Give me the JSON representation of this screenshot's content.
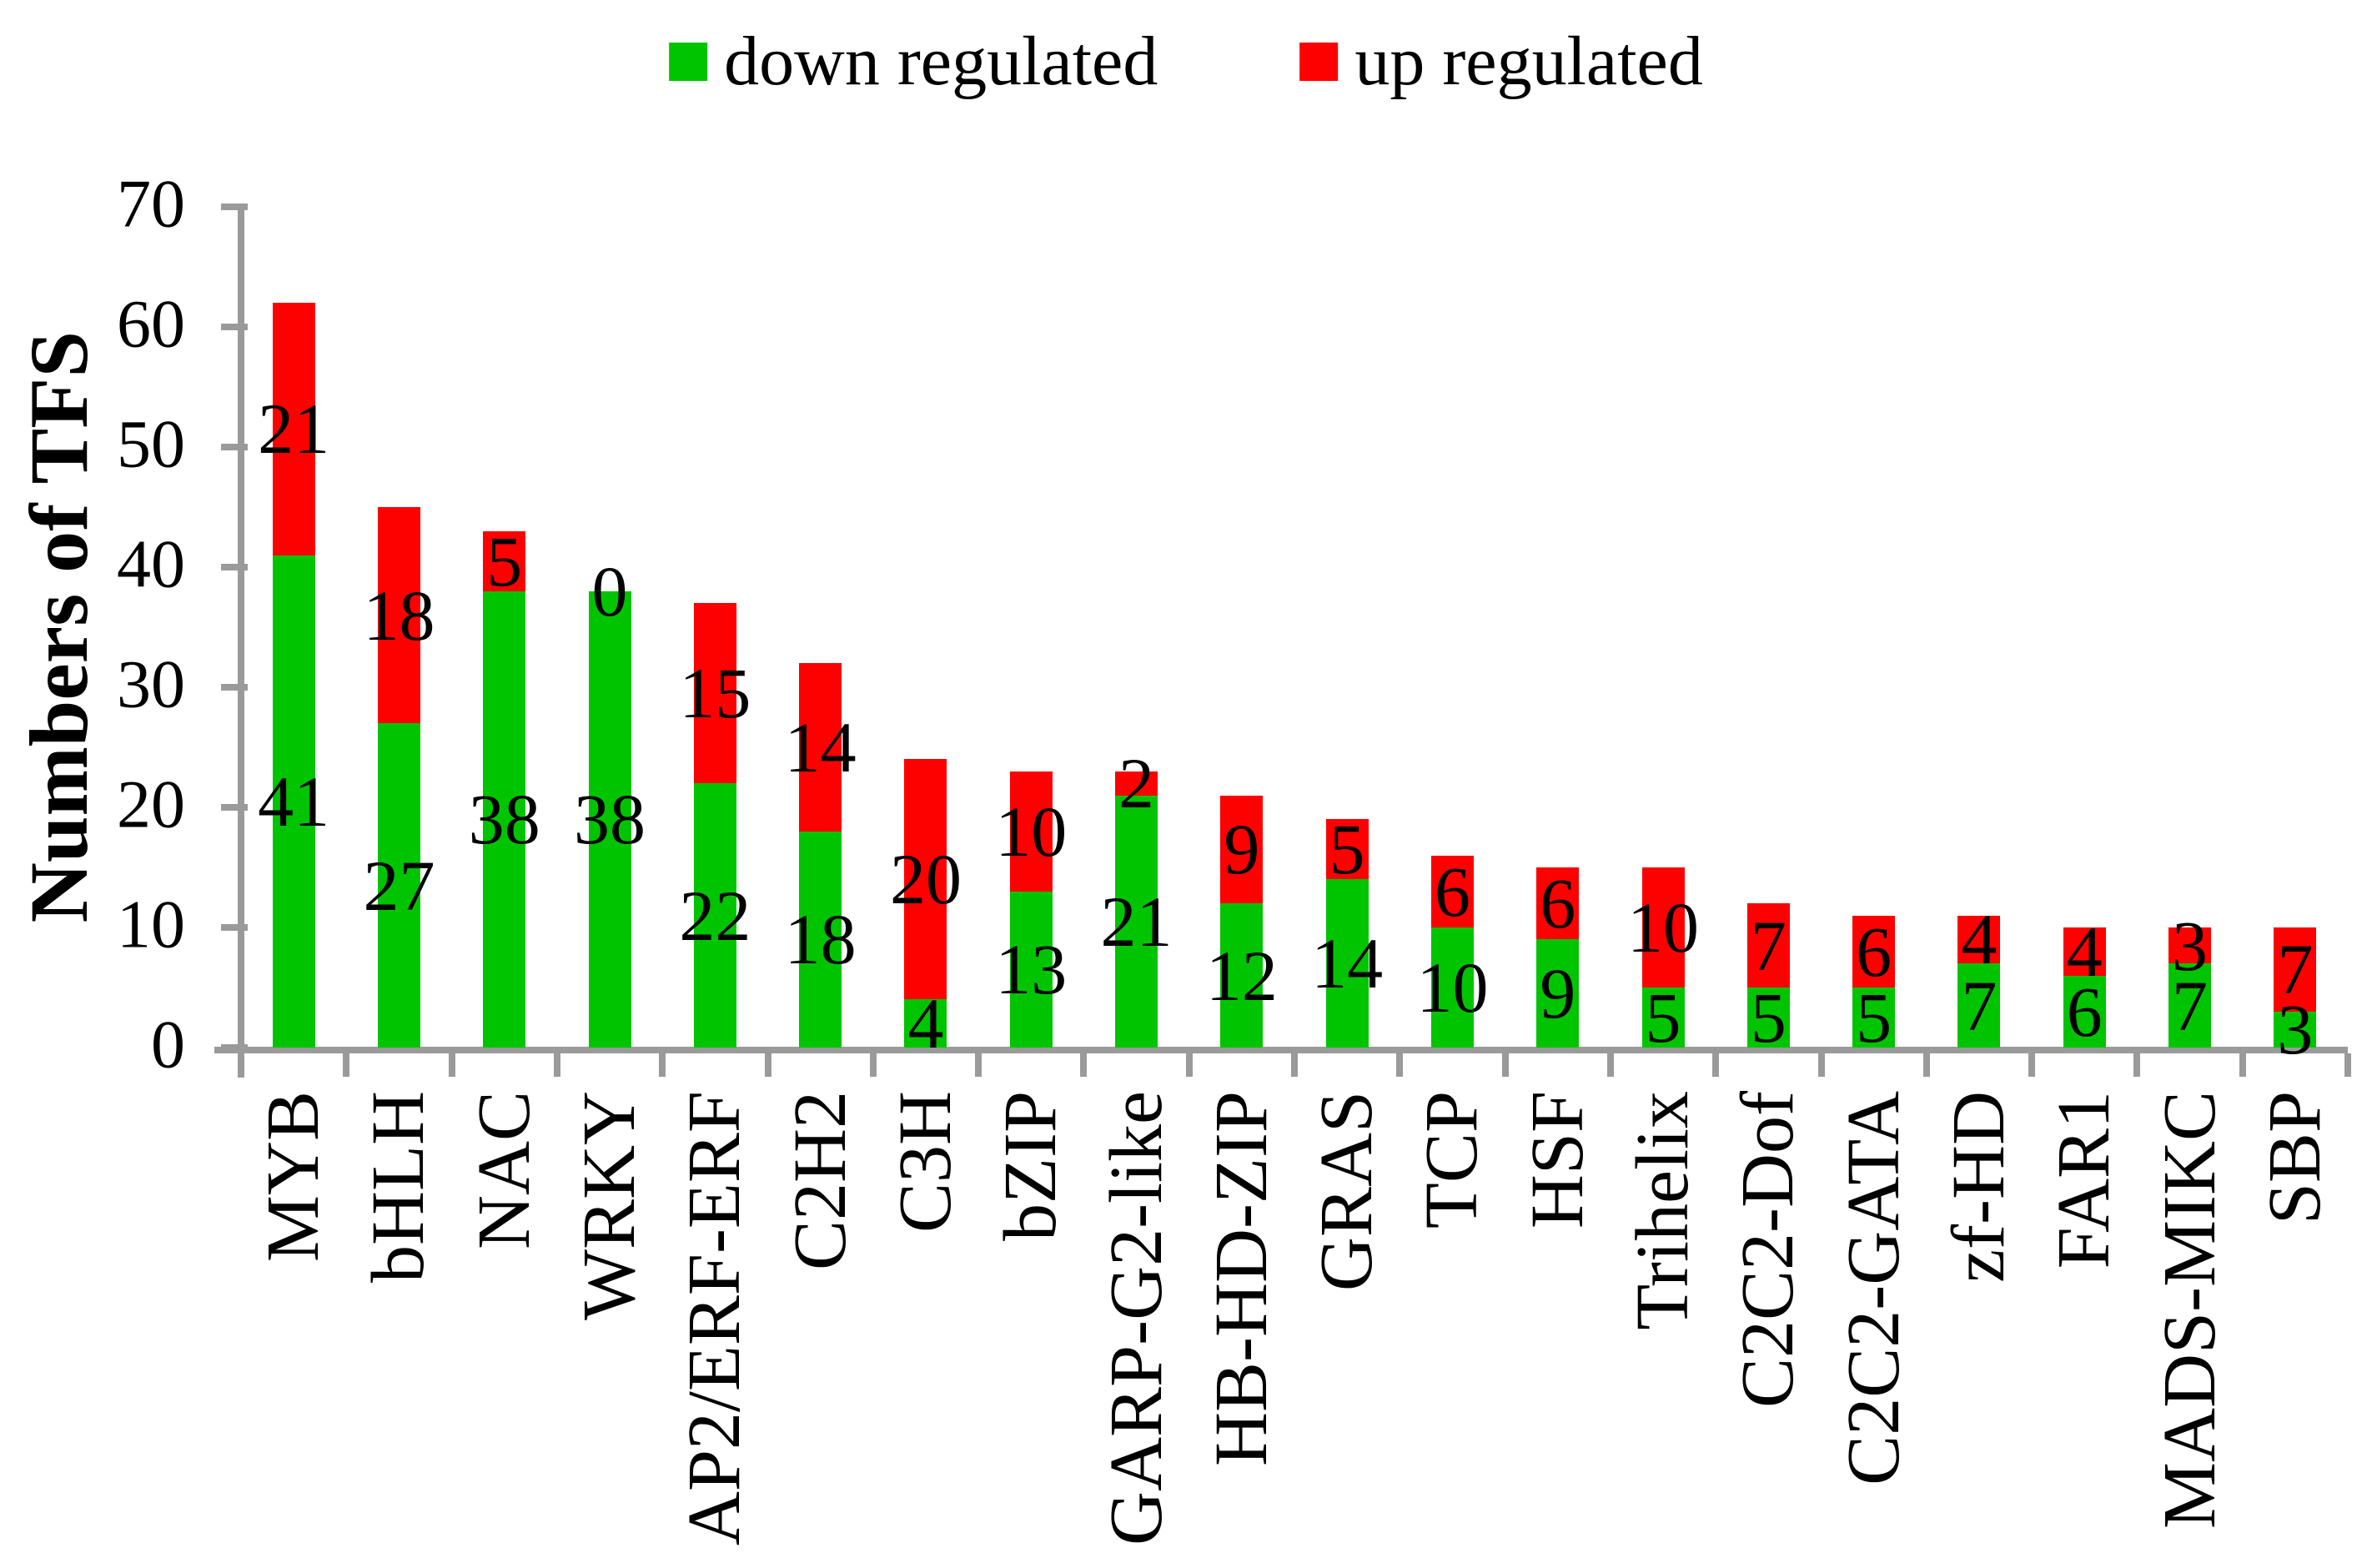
{
  "legend": {
    "items": [
      {
        "label": "down regulated",
        "color": "#00C400"
      },
      {
        "label": "up regulated",
        "color": "#FD0000"
      }
    ]
  },
  "y_axis": {
    "title": "Numbers of TFS",
    "tick_labels": [
      "0",
      "10",
      "20",
      "30",
      "40",
      "50",
      "60",
      "70"
    ],
    "min": 0,
    "max": 70
  },
  "chart_data": {
    "type": "bar",
    "stacked": true,
    "title": "",
    "xlabel": "",
    "ylabel": "Numbers of TFS",
    "ylim": [
      0,
      70
    ],
    "grid": false,
    "legend_position": "top",
    "data_labels": true,
    "categories": [
      "MYB",
      "bHLH",
      "NAC",
      "WRKY",
      "AP2/ERF-ERF",
      "C2H2",
      "C3H",
      "bZIP",
      "GARP-G2-like",
      "HB-HD-ZIP",
      "GRAS",
      "TCP",
      "HSF",
      "Trihelix",
      "C2C2-Dof",
      "C2C2-GATA",
      "zf-HD",
      "FAR1",
      "MADS-MIKC",
      "SBP"
    ],
    "series": [
      {
        "name": "down regulated",
        "color": "#00C400",
        "values": [
          41,
          27,
          38,
          38,
          22,
          18,
          4,
          13,
          21,
          12,
          14,
          10,
          9,
          5,
          5,
          5,
          7,
          6,
          7,
          3
        ]
      },
      {
        "name": "up regulated",
        "color": "#FD0000",
        "values": [
          21,
          18,
          5,
          0,
          15,
          14,
          20,
          10,
          2,
          9,
          5,
          6,
          6,
          10,
          7,
          6,
          4,
          4,
          3,
          7
        ]
      }
    ]
  }
}
